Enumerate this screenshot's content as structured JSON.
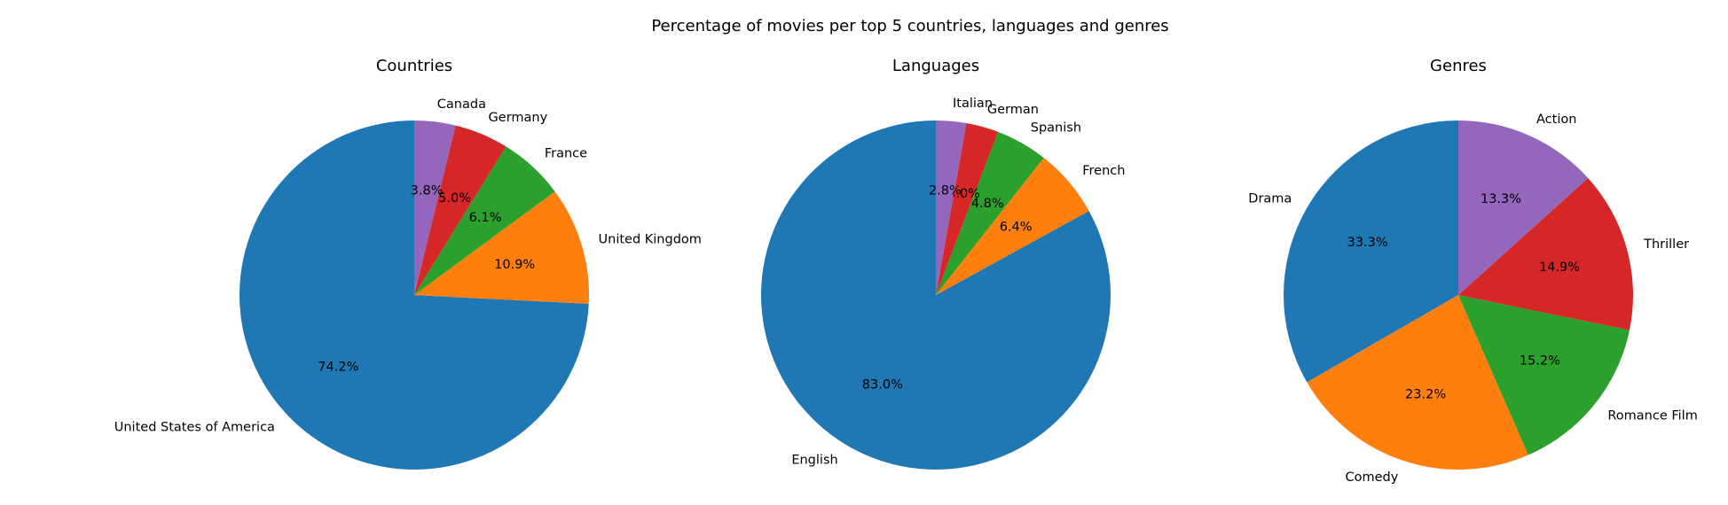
{
  "figure_title": "Percentage of movies per top 5 countries, languages and genres",
  "colors": [
    "#1f77b4",
    "#ff7f0e",
    "#2ca02c",
    "#d62728",
    "#9467bd"
  ],
  "chart_data": [
    {
      "type": "pie",
      "title": "Countries",
      "start_angle_deg": 90,
      "direction": "counterclockwise",
      "labels": [
        "United States of America",
        "United Kingdom",
        "France",
        "Germany",
        "Canada"
      ],
      "values": [
        74.2,
        10.9,
        6.1,
        5.0,
        3.8
      ],
      "pct_labels": [
        "74.2%",
        "10.9%",
        "6.1%",
        "5.0%",
        "3.8%"
      ]
    },
    {
      "type": "pie",
      "title": "Languages",
      "start_angle_deg": 90,
      "direction": "counterclockwise",
      "labels": [
        "English",
        "French",
        "Spanish",
        "German",
        "Italian"
      ],
      "values": [
        83.0,
        6.4,
        4.8,
        3.0,
        2.8
      ],
      "pct_labels": [
        "83.0%",
        "6.4%",
        "4.8%",
        "3.0%",
        "2.8%"
      ]
    },
    {
      "type": "pie",
      "title": "Genres",
      "start_angle_deg": 90,
      "direction": "counterclockwise",
      "labels": [
        "Drama",
        "Comedy",
        "Romance Film",
        "Thriller",
        "Action"
      ],
      "values": [
        33.3,
        23.2,
        15.2,
        14.9,
        13.3
      ],
      "pct_labels": [
        "33.3%",
        "23.2%",
        "15.2%",
        "14.9%",
        "13.3%"
      ]
    }
  ]
}
